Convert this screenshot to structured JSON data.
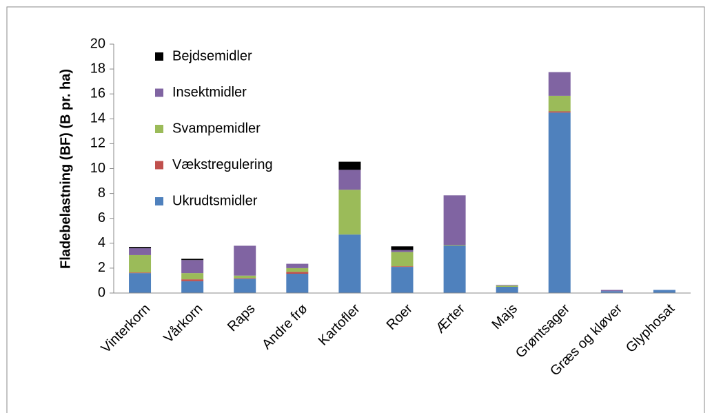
{
  "chart_data": {
    "type": "stacked_bar",
    "y_label": "Fladebelastning (BF) (B pr. ha)",
    "categories": [
      "Vinterkorn",
      "Vårkorn",
      "Raps",
      "Andre frø",
      "Kartofler",
      "Roer",
      "Ærter",
      "Majs",
      "Grøntsager",
      "Græs og kløver",
      "Glyphosat"
    ],
    "series": [
      {
        "name": "Ukrudtsmidler",
        "color": "#4f81bd",
        "values": [
          1.6,
          0.95,
          1.15,
          1.55,
          4.7,
          2.1,
          3.8,
          0.5,
          14.5,
          0.15,
          0.25
        ]
      },
      {
        "name": "Vækstregulering",
        "color": "#c0504d",
        "values": [
          0.05,
          0.15,
          0.05,
          0.15,
          0,
          0.05,
          0,
          0,
          0.1,
          0,
          0
        ]
      },
      {
        "name": "Svampemidler",
        "color": "#9bbb59",
        "values": [
          1.4,
          0.5,
          0.2,
          0.3,
          3.6,
          1.15,
          0.05,
          0.1,
          1.25,
          0,
          0
        ]
      },
      {
        "name": "Insektmidler",
        "color": "#8064a2",
        "values": [
          0.55,
          1.05,
          2.4,
          0.35,
          1.6,
          0.15,
          4.0,
          0.05,
          1.9,
          0.1,
          0
        ]
      },
      {
        "name": "Bejdsemidler",
        "color": "#000000",
        "values": [
          0.1,
          0.1,
          0,
          0,
          0.65,
          0.3,
          0,
          0,
          0,
          0,
          0
        ]
      }
    ],
    "ylim": [
      0,
      20
    ],
    "yticks": [
      0,
      2,
      4,
      6,
      8,
      10,
      12,
      14,
      16,
      18,
      20
    ],
    "legend": "upper left",
    "grid": false
  }
}
